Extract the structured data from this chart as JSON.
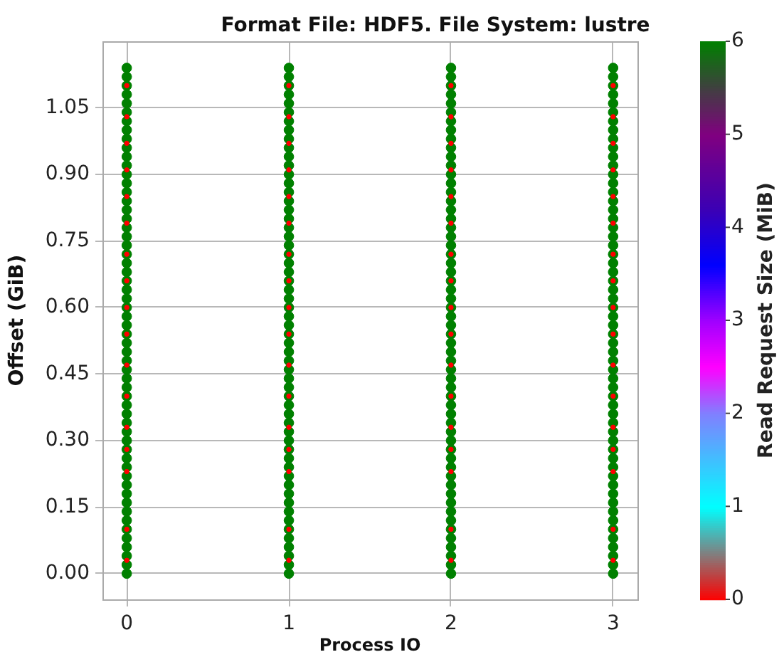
{
  "chart_data": {
    "type": "scatter",
    "title": "Format File: HDF5. File System: lustre",
    "xlabel": "Process IO",
    "ylabel": "Offset (GiB)",
    "clabel": "Read Request Size (MiB)",
    "xlim": [
      -0.15,
      3.15
    ],
    "xticks": [
      0,
      1,
      2,
      3
    ],
    "ylim": [
      -0.058,
      1.2
    ],
    "yticks": [
      {
        "value": 0,
        "label": "0.00"
      },
      {
        "value": 0.15,
        "label": "0.15"
      },
      {
        "value": 0.3,
        "label": "0.30"
      },
      {
        "value": 0.45,
        "label": "0.45"
      },
      {
        "value": 0.6,
        "label": "0.60"
      },
      {
        "value": 0.75,
        "label": "0.75"
      },
      {
        "value": 0.9,
        "label": "0.90"
      },
      {
        "value": 1.05,
        "label": "1.05"
      }
    ],
    "clim": [
      0,
      6
    ],
    "cticks": [
      0,
      1,
      2,
      3,
      4,
      5,
      6
    ],
    "grid": true,
    "marker": "circle",
    "series": [
      {
        "color": "#008000",
        "x": [
          0,
          0,
          0,
          0,
          0,
          0,
          0,
          0,
          0,
          0,
          0,
          0,
          0,
          0,
          0,
          0,
          0,
          0,
          0,
          0,
          0,
          0,
          0,
          0,
          0,
          0,
          0,
          0,
          0,
          0,
          0,
          0,
          0,
          0,
          0,
          0,
          0,
          0,
          0,
          0,
          0,
          0,
          0,
          0,
          0,
          0,
          0,
          0,
          0,
          0,
          0,
          0,
          0,
          0,
          0,
          0,
          0,
          0,
          1,
          1,
          1,
          1,
          1,
          1,
          1,
          1,
          1,
          1,
          1,
          1,
          1,
          1,
          1,
          1,
          1,
          1,
          1,
          1,
          1,
          1,
          1,
          1,
          1,
          1,
          1,
          1,
          1,
          1,
          1,
          1,
          1,
          1,
          1,
          1,
          1,
          1,
          1,
          1,
          1,
          1,
          1,
          1,
          1,
          1,
          1,
          1,
          1,
          1,
          1,
          1,
          1,
          1,
          1,
          1,
          1,
          1,
          2,
          2,
          2,
          2,
          2,
          2,
          2,
          2,
          2,
          2,
          2,
          2,
          2,
          2,
          2,
          2,
          2,
          2,
          2,
          2,
          2,
          2,
          2,
          2,
          2,
          2,
          2,
          2,
          2,
          2,
          2,
          2,
          2,
          2,
          2,
          2,
          2,
          2,
          2,
          2,
          2,
          2,
          2,
          2,
          2,
          2,
          2,
          2,
          2,
          2,
          2,
          2,
          2,
          2,
          2,
          2,
          2,
          2,
          3,
          3,
          3,
          3,
          3,
          3,
          3,
          3,
          3,
          3,
          3,
          3,
          3,
          3,
          3,
          3,
          3,
          3,
          3,
          3,
          3,
          3,
          3,
          3,
          3,
          3,
          3,
          3,
          3,
          3,
          3,
          3,
          3,
          3,
          3,
          3,
          3,
          3,
          3,
          3,
          3,
          3,
          3,
          3,
          3,
          3,
          3,
          3,
          3,
          3,
          3,
          3,
          3,
          3,
          3,
          3,
          3,
          3
        ],
        "values": [
          0,
          0.02,
          0.04,
          0.06,
          0.08,
          0.1,
          0.12,
          0.14,
          0.16,
          0.18,
          0.2,
          0.22,
          0.24,
          0.26,
          0.28,
          0.3,
          0.32,
          0.34,
          0.36,
          0.38,
          0.4,
          0.42,
          0.44,
          0.46,
          0.48,
          0.5,
          0.52,
          0.54,
          0.56,
          0.58,
          0.6,
          0.62,
          0.64,
          0.66,
          0.68,
          0.7,
          0.72,
          0.74,
          0.76,
          0.78,
          0.8,
          0.82,
          0.84,
          0.86,
          0.88,
          0.9,
          0.92,
          0.94,
          0.96,
          0.98,
          1,
          1.02,
          1.04,
          1.06,
          1.08,
          1.1,
          1.12,
          1.14,
          0,
          0.02,
          0.04,
          0.06,
          0.08,
          0.1,
          0.12,
          0.14,
          0.16,
          0.18,
          0.2,
          0.22,
          0.24,
          0.26,
          0.28,
          0.3,
          0.32,
          0.34,
          0.36,
          0.38,
          0.4,
          0.42,
          0.44,
          0.46,
          0.48,
          0.5,
          0.52,
          0.54,
          0.56,
          0.58,
          0.6,
          0.62,
          0.64,
          0.66,
          0.68,
          0.7,
          0.72,
          0.74,
          0.76,
          0.78,
          0.8,
          0.82,
          0.84,
          0.86,
          0.88,
          0.9,
          0.92,
          0.94,
          0.96,
          0.98,
          1,
          1.02,
          1.04,
          1.06,
          1.08,
          1.1,
          1.12,
          1.14,
          0,
          0.02,
          0.04,
          0.06,
          0.08,
          0.1,
          0.12,
          0.14,
          0.16,
          0.18,
          0.2,
          0.22,
          0.24,
          0.26,
          0.28,
          0.3,
          0.32,
          0.34,
          0.36,
          0.38,
          0.4,
          0.42,
          0.44,
          0.46,
          0.48,
          0.5,
          0.52,
          0.54,
          0.56,
          0.58,
          0.6,
          0.62,
          0.64,
          0.66,
          0.68,
          0.7,
          0.72,
          0.74,
          0.76,
          0.78,
          0.8,
          0.82,
          0.84,
          0.86,
          0.88,
          0.9,
          0.92,
          0.94,
          0.96,
          0.98,
          1,
          1.02,
          1.04,
          1.06,
          1.08,
          1.1,
          1.12,
          1.14,
          0,
          0.02,
          0.04,
          0.06,
          0.08,
          0.1,
          0.12,
          0.14,
          0.16,
          0.18,
          0.2,
          0.22,
          0.24,
          0.26,
          0.28,
          0.3,
          0.32,
          0.34,
          0.36,
          0.38,
          0.4,
          0.42,
          0.44,
          0.46,
          0.48,
          0.5,
          0.52,
          0.54,
          0.56,
          0.58,
          0.6,
          0.62,
          0.64,
          0.66,
          0.68,
          0.7,
          0.72,
          0.74,
          0.76,
          0.78,
          0.8,
          0.82,
          0.84,
          0.86,
          0.88,
          0.9,
          0.92,
          0.94,
          0.96,
          0.98,
          1,
          1.02,
          1.04,
          1.06,
          1.08,
          1.1,
          1.12,
          1.14
        ],
        "cvalues": [
          6,
          6,
          6,
          6,
          6,
          6,
          6,
          6,
          6,
          6,
          6,
          6,
          6,
          6,
          6,
          6,
          6,
          6,
          6,
          6,
          6,
          6,
          6,
          6,
          6,
          6,
          6,
          6,
          6,
          6,
          6,
          6,
          6,
          6,
          6,
          6,
          6,
          6,
          6,
          6,
          6,
          6,
          6,
          6,
          6,
          6,
          6,
          6,
          6,
          6,
          6,
          6,
          6,
          6,
          6,
          6,
          6,
          6,
          6,
          6,
          6,
          6,
          6,
          6,
          6,
          6,
          6,
          6,
          6,
          6,
          6,
          6,
          6,
          6,
          6,
          6,
          6,
          6,
          6,
          6,
          6,
          6,
          6,
          6,
          6,
          6,
          6,
          6,
          6,
          6,
          6,
          6,
          6,
          6,
          6,
          6,
          6,
          6,
          6,
          6,
          6,
          6,
          6,
          6,
          6,
          6,
          6,
          6,
          6,
          6,
          6,
          6,
          6,
          6,
          6,
          6,
          6,
          6,
          6,
          6,
          6,
          6,
          6,
          6,
          6,
          6,
          6,
          6,
          6,
          6,
          6,
          6,
          6,
          6,
          6,
          6,
          6,
          6,
          6,
          6,
          6,
          6,
          6,
          6,
          6,
          6,
          6,
          6,
          6,
          6,
          6,
          6,
          6,
          6,
          6,
          6,
          6,
          6,
          6,
          6,
          6,
          6,
          6,
          6,
          6,
          6,
          6,
          6,
          6,
          6,
          6,
          6,
          6,
          6,
          6,
          6,
          6,
          6,
          6,
          6,
          6,
          6,
          6,
          6,
          6,
          6,
          6,
          6,
          6,
          6,
          6,
          6,
          6,
          6,
          6,
          6,
          6,
          6,
          6,
          6,
          6,
          6,
          6,
          6,
          6,
          6,
          6,
          6,
          6,
          6,
          6,
          6,
          6,
          6,
          6,
          6,
          6,
          6,
          6,
          6,
          6,
          6,
          6,
          6,
          6,
          6,
          6,
          6,
          6,
          6,
          6,
          6
        ]
      },
      {
        "color": "#ff0000",
        "x": [
          0,
          0,
          0,
          0,
          0,
          0,
          0,
          0,
          0,
          0,
          0,
          0,
          0,
          0,
          0,
          0,
          0,
          1,
          1,
          1,
          1,
          1,
          1,
          1,
          1,
          1,
          1,
          1,
          1,
          1,
          1,
          1,
          1,
          1,
          2,
          2,
          2,
          2,
          2,
          2,
          2,
          2,
          2,
          2,
          2,
          2,
          2,
          2,
          2,
          2,
          2,
          3,
          3,
          3,
          3,
          3,
          3,
          3,
          3,
          3,
          3,
          3,
          3,
          3,
          3,
          3,
          3,
          3
        ],
        "values": [
          0.03,
          0.1,
          0.23,
          0.28,
          0.33,
          0.4,
          0.47,
          0.54,
          0.6,
          0.66,
          0.72,
          0.79,
          0.85,
          0.91,
          0.97,
          1.03,
          1.1,
          0.03,
          0.1,
          0.23,
          0.28,
          0.33,
          0.4,
          0.47,
          0.54,
          0.6,
          0.66,
          0.72,
          0.79,
          0.85,
          0.91,
          0.97,
          1.03,
          1.1,
          0.03,
          0.1,
          0.23,
          0.28,
          0.33,
          0.4,
          0.47,
          0.54,
          0.6,
          0.66,
          0.72,
          0.79,
          0.85,
          0.91,
          0.97,
          1.03,
          1.1,
          0.03,
          0.1,
          0.23,
          0.28,
          0.33,
          0.4,
          0.47,
          0.54,
          0.6,
          0.66,
          0.72,
          0.79,
          0.85,
          0.91,
          0.97,
          1.03,
          1.1
        ],
        "cvalues": [
          0,
          0,
          0,
          0,
          0,
          0,
          0,
          0,
          0,
          0,
          0,
          0,
          0,
          0,
          0,
          0,
          0,
          0,
          0,
          0,
          0,
          0,
          0,
          0,
          0,
          0,
          0,
          0,
          0,
          0,
          0,
          0,
          0,
          0,
          0,
          0,
          0,
          0,
          0,
          0,
          0,
          0,
          0,
          0,
          0,
          0,
          0,
          0,
          0,
          0,
          0,
          0,
          0,
          0,
          0,
          0,
          0,
          0,
          0,
          0,
          0,
          0,
          0,
          0,
          0,
          0,
          0,
          0
        ]
      }
    ]
  }
}
